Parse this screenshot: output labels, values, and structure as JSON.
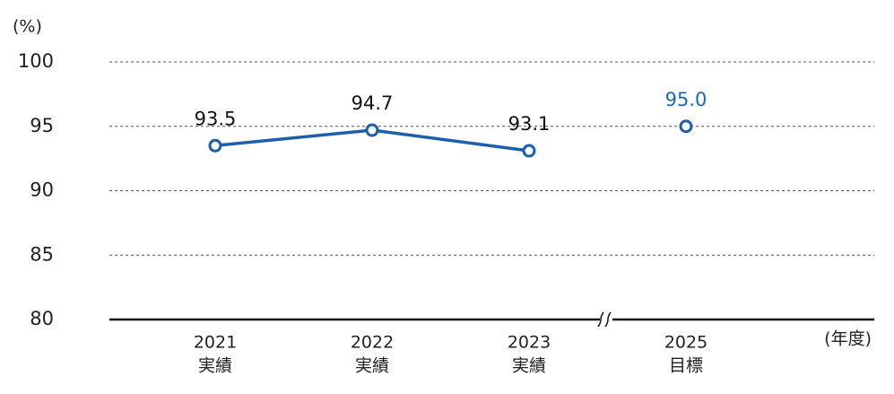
{
  "chart_data": {
    "type": "line",
    "y_unit_label": "(%)",
    "x_unit_label": "(年度)",
    "categories": [
      "2021",
      "2022",
      "2023",
      "2025"
    ],
    "category_sublabels": [
      "実績",
      "実績",
      "実績",
      "目標"
    ],
    "series": [
      {
        "color": "#1f5ea8",
        "label_color": "#111111",
        "values": [
          93.5,
          94.7,
          93.1,
          null
        ],
        "value_labels": [
          "93.5",
          "94.7",
          "93.1",
          null
        ]
      },
      {
        "color": "#1f5ea8",
        "label_color": "#1a6bb5",
        "values": [
          null,
          null,
          null,
          95.0
        ],
        "value_labels": [
          null,
          null,
          null,
          "95.0"
        ]
      }
    ],
    "ylim": [
      80,
      100
    ],
    "yticks": [
      80,
      85,
      90,
      95,
      100
    ],
    "grid": true
  }
}
